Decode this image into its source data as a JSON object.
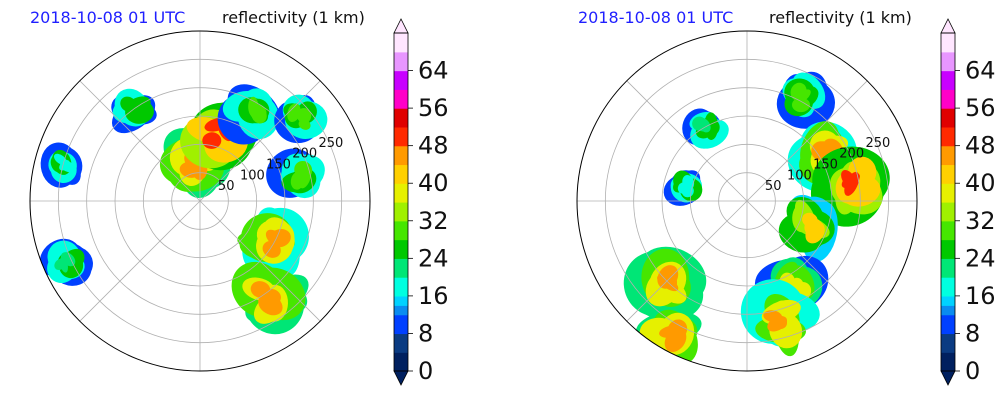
{
  "chart_data": [
    {
      "type": "heatmap",
      "title_left": "2018-10-08 01 UTC",
      "title_right": "reflectivity (1 km)",
      "projection": "polar",
      "radial_tick_labels": [
        "50",
        "100",
        "150",
        "200",
        "250"
      ],
      "radial_ticks": [
        50,
        100,
        150,
        200,
        250
      ],
      "rmax": 300,
      "colorbar_ticks": [
        "0",
        "8",
        "16",
        "24",
        "32",
        "40",
        "48",
        "56",
        "64"
      ],
      "colorbar_range": [
        0,
        72
      ],
      "grid": true,
      "echo_regions": [
        {
          "angle_deg": 95,
          "r": 70,
          "value": 46
        },
        {
          "angle_deg": 75,
          "r": 120,
          "value": 50
        },
        {
          "angle_deg": 60,
          "r": 180,
          "value": 30
        },
        {
          "angle_deg": 40,
          "r": 230,
          "value": 28
        },
        {
          "angle_deg": 15,
          "r": 180,
          "value": 30
        },
        {
          "angle_deg": -30,
          "r": 150,
          "value": 45
        },
        {
          "angle_deg": -55,
          "r": 210,
          "value": 46
        },
        {
          "angle_deg": 125,
          "r": 200,
          "value": 24
        },
        {
          "angle_deg": 165,
          "r": 250,
          "value": 18
        },
        {
          "angle_deg": 205,
          "r": 260,
          "value": 20
        }
      ]
    },
    {
      "type": "heatmap",
      "title_left": "2018-10-08 01 UTC",
      "title_right": "reflectivity (1 km)",
      "projection": "polar",
      "radial_tick_labels": [
        "50",
        "100",
        "150",
        "200",
        "250"
      ],
      "radial_ticks": [
        50,
        100,
        150,
        200,
        250
      ],
      "rmax": 300,
      "colorbar_ticks": [
        "0",
        "8",
        "16",
        "24",
        "32",
        "40",
        "48",
        "56",
        "64"
      ],
      "colorbar_range": [
        0,
        72
      ],
      "grid": true,
      "echo_regions": [
        {
          "angle_deg": 60,
          "r": 210,
          "value": 30
        },
        {
          "angle_deg": 30,
          "r": 160,
          "value": 44
        },
        {
          "angle_deg": 10,
          "r": 190,
          "value": 50
        },
        {
          "angle_deg": -20,
          "r": 120,
          "value": 40
        },
        {
          "angle_deg": -60,
          "r": 170,
          "value": 36
        },
        {
          "angle_deg": -75,
          "r": 220,
          "value": 44
        },
        {
          "angle_deg": -135,
          "r": 210,
          "value": 46
        },
        {
          "angle_deg": -120,
          "r": 270,
          "value": 46
        },
        {
          "angle_deg": 120,
          "r": 150,
          "value": 22
        },
        {
          "angle_deg": 165,
          "r": 110,
          "value": 18
        }
      ]
    }
  ]
}
